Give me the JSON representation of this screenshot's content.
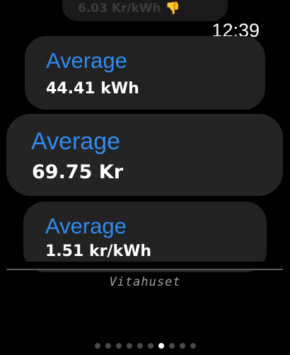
{
  "status": {
    "time": "12:39"
  },
  "top_partial_card": {
    "value": "6.03 Kr/kWh 👎"
  },
  "cards": [
    {
      "label": "Average",
      "value": "44.41 kWh"
    },
    {
      "label": "Average",
      "value": "69.75 Kr"
    },
    {
      "label": "Average",
      "value": "1.51 kr/kWh"
    }
  ],
  "footer": {
    "text": "Vitahuset"
  },
  "page_indicator": {
    "total": 10,
    "current": 7
  }
}
